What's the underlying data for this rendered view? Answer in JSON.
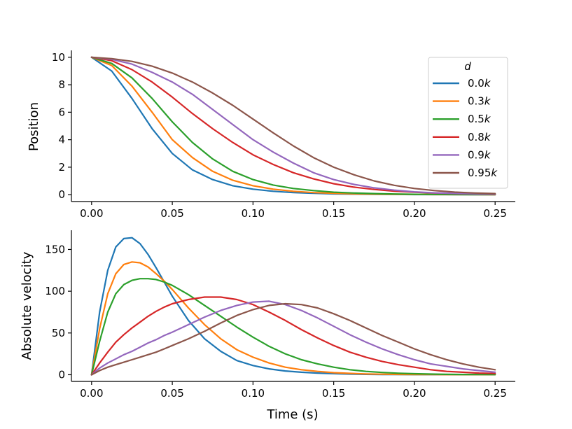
{
  "chart_data": [
    {
      "type": "line",
      "id": "position",
      "xlabel": "",
      "ylabel": "Position",
      "xlim": [
        -0.0125,
        0.2625
      ],
      "ylim": [
        -0.5,
        10.5
      ],
      "xticks": [
        0.0,
        0.05,
        0.1,
        0.15,
        0.2,
        0.25
      ],
      "xtick_labels": [
        "0.00",
        "0.05",
        "0.10",
        "0.15",
        "0.20",
        "0.25"
      ],
      "yticks": [
        0,
        2,
        4,
        6,
        8,
        10
      ],
      "ytick_labels": [
        "0",
        "2",
        "4",
        "6",
        "8",
        "10"
      ],
      "legend": {
        "title": "d",
        "placement": "top-right",
        "entries": [
          "0.0k",
          "0.3k",
          "0.5k",
          "0.8k",
          "0.9k",
          "0.95k"
        ]
      },
      "x": [
        0.0,
        0.0125,
        0.025,
        0.0375,
        0.05,
        0.0625,
        0.075,
        0.0875,
        0.1,
        0.1125,
        0.125,
        0.1375,
        0.15,
        0.1625,
        0.175,
        0.1875,
        0.2,
        0.2125,
        0.225,
        0.2375,
        0.25
      ],
      "series": [
        {
          "name": "0.0k",
          "color": "#1f77b4",
          "values": [
            10.0,
            9.0,
            7.0,
            4.8,
            3.0,
            1.8,
            1.1,
            0.65,
            0.4,
            0.25,
            0.15,
            0.1,
            0.06,
            0.04,
            0.03,
            0.02,
            0.01,
            0.01,
            0.01,
            0.0,
            0.0
          ]
        },
        {
          "name": "0.3k",
          "color": "#ff7f0e",
          "values": [
            10.0,
            9.4,
            7.9,
            6.0,
            4.0,
            2.7,
            1.7,
            1.05,
            0.65,
            0.4,
            0.25,
            0.15,
            0.1,
            0.06,
            0.04,
            0.03,
            0.02,
            0.01,
            0.01,
            0.01,
            0.0
          ]
        },
        {
          "name": "0.5k",
          "color": "#2ca02c",
          "values": [
            10.0,
            9.55,
            8.5,
            7.0,
            5.3,
            3.8,
            2.6,
            1.7,
            1.1,
            0.7,
            0.45,
            0.3,
            0.18,
            0.12,
            0.08,
            0.05,
            0.03,
            0.02,
            0.01,
            0.01,
            0.01
          ]
        },
        {
          "name": "0.8k",
          "color": "#d62728",
          "values": [
            10.0,
            9.75,
            9.1,
            8.2,
            7.1,
            5.9,
            4.8,
            3.8,
            2.9,
            2.2,
            1.6,
            1.15,
            0.8,
            0.55,
            0.38,
            0.26,
            0.18,
            0.12,
            0.08,
            0.05,
            0.03
          ]
        },
        {
          "name": "0.9k",
          "color": "#9467bd",
          "values": [
            10.0,
            9.85,
            9.5,
            8.9,
            8.2,
            7.3,
            6.2,
            5.1,
            4.0,
            3.1,
            2.3,
            1.6,
            1.1,
            0.75,
            0.5,
            0.33,
            0.21,
            0.13,
            0.09,
            0.06,
            0.04
          ]
        },
        {
          "name": "0.95k",
          "color": "#8c564b",
          "values": [
            10.0,
            9.9,
            9.7,
            9.35,
            8.85,
            8.2,
            7.4,
            6.5,
            5.5,
            4.5,
            3.55,
            2.7,
            2.0,
            1.45,
            1.0,
            0.68,
            0.45,
            0.3,
            0.19,
            0.12,
            0.08
          ]
        }
      ]
    },
    {
      "type": "line",
      "id": "velocity",
      "xlabel": "Time (s)",
      "ylabel": "Absolute velocity",
      "xlim": [
        -0.0125,
        0.2625
      ],
      "ylim": [
        -8,
        173
      ],
      "xticks": [
        0.0,
        0.05,
        0.1,
        0.15,
        0.2,
        0.25
      ],
      "xtick_labels": [
        "0.00",
        "0.05",
        "0.10",
        "0.15",
        "0.20",
        "0.25"
      ],
      "yticks": [
        0,
        50,
        100,
        150
      ],
      "ytick_labels": [
        "0",
        "50",
        "100",
        "150"
      ],
      "x": [
        0.0,
        0.005,
        0.01,
        0.015,
        0.02,
        0.025,
        0.03,
        0.035,
        0.04,
        0.045,
        0.05,
        0.06,
        0.07,
        0.08,
        0.09,
        0.1,
        0.11,
        0.12,
        0.13,
        0.14,
        0.15,
        0.16,
        0.17,
        0.18,
        0.19,
        0.2,
        0.21,
        0.22,
        0.23,
        0.24,
        0.25
      ],
      "series": [
        {
          "name": "0.0k",
          "color": "#1f77b4",
          "values": [
            0,
            75,
            125,
            153,
            163,
            164,
            157,
            144,
            128,
            111,
            94,
            65,
            43,
            28,
            17,
            11,
            7,
            4.5,
            3,
            2,
            1.3,
            0.8,
            0.5,
            0.3,
            0.2,
            0.1,
            0.1,
            0.1,
            0.1,
            0.1,
            0.1
          ]
        },
        {
          "name": "0.3k",
          "color": "#ff7f0e",
          "values": [
            0,
            55,
            97,
            121,
            132,
            135,
            134,
            129,
            121,
            112,
            102,
            80,
            60,
            43,
            30,
            21,
            14,
            9,
            6,
            4,
            2.5,
            1.6,
            1,
            0.6,
            0.4,
            0.3,
            0.2,
            0.1,
            0.1,
            0.1,
            0.1
          ]
        },
        {
          "name": "0.5k",
          "color": "#2ca02c",
          "values": [
            0,
            40,
            75,
            97,
            108,
            113,
            115,
            115,
            114,
            111,
            107,
            96,
            83,
            70,
            57,
            45,
            34,
            25,
            18,
            13,
            9,
            6,
            4,
            2.7,
            1.8,
            1.2,
            0.8,
            0.5,
            0.3,
            0.2,
            0.1
          ]
        },
        {
          "name": "0.8k",
          "color": "#d62728",
          "values": [
            0,
            14,
            27,
            39,
            48,
            56,
            63,
            70,
            76,
            81,
            85,
            90,
            93,
            93,
            90,
            84,
            75,
            65,
            54,
            44,
            35,
            27,
            21,
            16,
            12,
            9,
            6,
            4,
            3,
            2,
            1.5
          ]
        },
        {
          "name": "0.9k",
          "color": "#9467bd",
          "values": [
            0,
            8,
            14,
            19,
            24,
            28,
            33,
            38,
            42,
            47,
            51,
            60,
            69,
            77,
            83,
            87,
            88,
            84,
            77,
            68,
            58,
            48,
            39,
            31,
            24,
            18,
            13,
            10,
            7,
            5,
            3
          ]
        },
        {
          "name": "0.95k",
          "color": "#8c564b",
          "values": [
            0,
            5,
            9,
            12,
            15,
            18,
            21,
            24,
            27,
            31,
            35,
            43,
            52,
            62,
            71,
            78,
            83,
            85,
            84,
            80,
            73,
            65,
            56,
            47,
            39,
            31,
            24,
            18,
            13,
            9,
            6
          ]
        }
      ]
    }
  ]
}
